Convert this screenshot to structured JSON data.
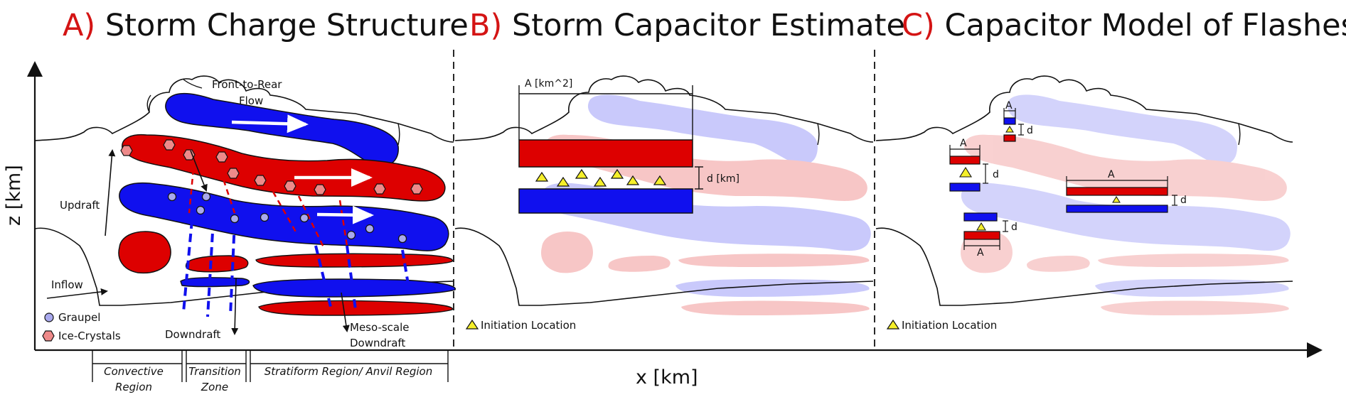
{
  "titles": {
    "a_letter": "A)",
    "a_text": "Storm Charge Structure",
    "b_letter": "B)",
    "b_text": "Storm Capacitor Estimate",
    "c_letter": "C)",
    "c_text": "Capacitor Model of Flashes"
  },
  "axes": {
    "y_label": "z [km]",
    "x_label": "x [km]"
  },
  "panel_a": {
    "front_to_rear": "Front-to-Rear",
    "flow": "Flow",
    "updraft": "Updraft",
    "inflow": "Inflow",
    "downdraft": "Downdraft",
    "meso_1": "Meso-scale",
    "meso_2": "Downdraft",
    "legend_graupel": "Graupel",
    "legend_ice": "Ice-Crystals",
    "regions": {
      "convective_1": "Convective",
      "convective_2": "Region",
      "transition_1": "Transition",
      "transition_2": "Zone",
      "stratiform": "Stratiform Region/ Anvil Region"
    }
  },
  "panel_b": {
    "area_label": "A [km^2]",
    "distance_label": "d [km]",
    "initiation": "Initiation Location"
  },
  "panel_c": {
    "a": "A",
    "d": "d",
    "initiation": "Initiation Location"
  },
  "colors": {
    "positive": "#dd0000",
    "negative": "#1010ee",
    "graupel": "#a9a9ee",
    "ice": "#ee8a8a",
    "initiation": "#f5ef2a",
    "title_letter": "#d41414"
  }
}
